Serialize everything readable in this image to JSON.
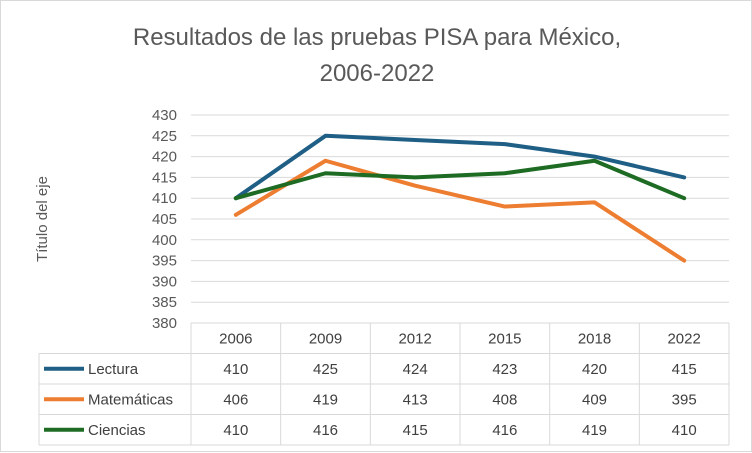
{
  "chart_data": {
    "type": "line",
    "title_line1": "Resultados de las pruebas PISA para México,",
    "title_line2": "2006-2022",
    "xlabel": "",
    "ylabel": "Título del eje",
    "categories": [
      "2006",
      "2009",
      "2012",
      "2015",
      "2018",
      "2022"
    ],
    "ylim": [
      380,
      430
    ],
    "yticks": [
      380,
      385,
      390,
      395,
      400,
      405,
      410,
      415,
      420,
      425,
      430
    ],
    "ytick_labels": [
      "380",
      "385",
      "390",
      "395",
      "400",
      "405",
      "410",
      "415",
      "420",
      "425",
      "430"
    ],
    "grid": true,
    "legend": "data-table",
    "series": [
      {
        "name": "Lectura",
        "color": "#1f5f86",
        "values": [
          410,
          425,
          424,
          423,
          420,
          415
        ],
        "value_labels": [
          "410",
          "425",
          "424",
          "423",
          "420",
          "415"
        ]
      },
      {
        "name": "Matemáticas",
        "color": "#ed7d31",
        "values": [
          406,
          419,
          413,
          408,
          409,
          395
        ],
        "value_labels": [
          "406",
          "419",
          "413",
          "408",
          "409",
          "395"
        ]
      },
      {
        "name": "Ciencias",
        "color": "#1e6b24",
        "values": [
          410,
          416,
          415,
          416,
          419,
          410
        ],
        "value_labels": [
          "410",
          "416",
          "415",
          "416",
          "419",
          "410"
        ]
      }
    ]
  }
}
